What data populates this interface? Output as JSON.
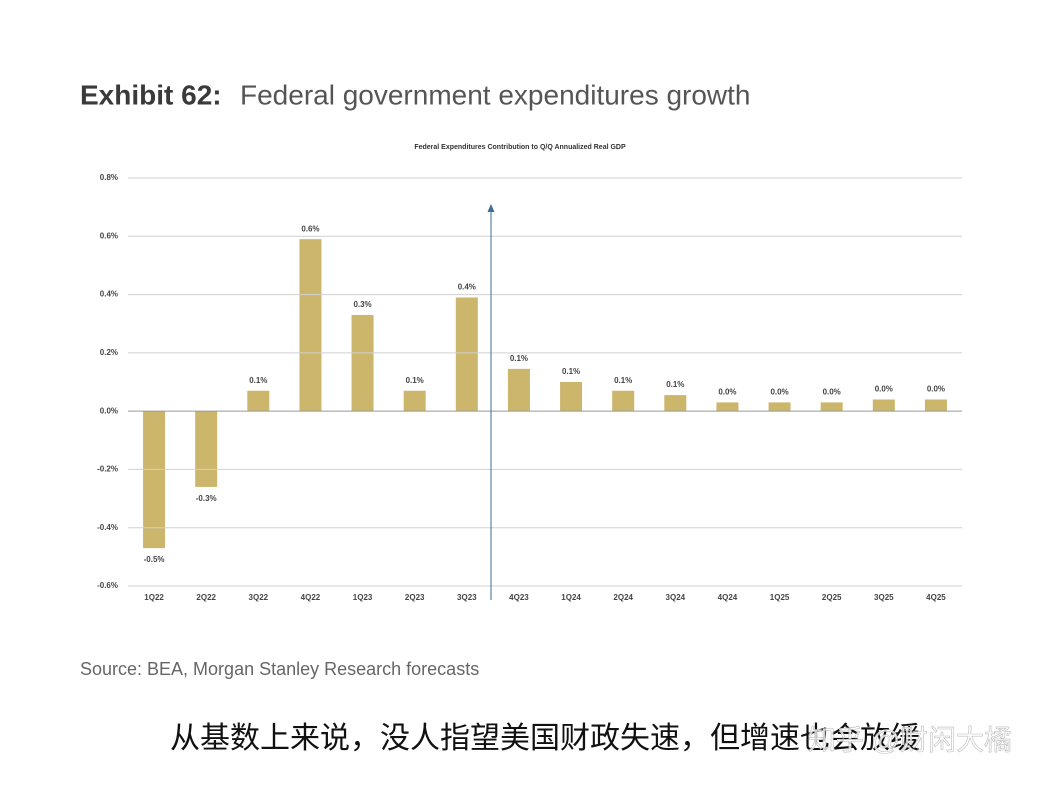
{
  "header": {
    "label": "Exhibit 62:",
    "title": "Federal government expenditures growth"
  },
  "chart_data": {
    "type": "bar",
    "title": "Federal Expenditures Contribution to Q/Q Annualized Real GDP",
    "categories": [
      "1Q22",
      "2Q22",
      "3Q22",
      "4Q22",
      "1Q23",
      "2Q23",
      "3Q23",
      "4Q23",
      "1Q24",
      "2Q24",
      "3Q24",
      "4Q24",
      "1Q25",
      "2Q25",
      "3Q25",
      "4Q25"
    ],
    "values": [
      -0.47,
      -0.26,
      0.07,
      0.59,
      0.33,
      0.07,
      0.39,
      0.145,
      0.1,
      0.07,
      0.055,
      0.03,
      0.03,
      0.03,
      0.04,
      0.04
    ],
    "value_labels": [
      "-0.5%",
      "-0.3%",
      "0.1%",
      "0.6%",
      "0.3%",
      "0.1%",
      "0.4%",
      "0.1%",
      "0.1%",
      "0.1%",
      "0.1%",
      "0.0%",
      "0.0%",
      "0.0%",
      "0.0%",
      "0.0%"
    ],
    "color": "#cbb66c",
    "ylim": [
      -0.6,
      0.8
    ],
    "yticks": [
      {
        "value": -0.6,
        "label": "-0.6%"
      },
      {
        "value": -0.4,
        "label": "-0.4%"
      },
      {
        "value": -0.2,
        "label": "-0.2%"
      },
      {
        "value": 0,
        "label": "0.0%"
      },
      {
        "value": 0.2,
        "label": "0.2%"
      },
      {
        "value": 0.4,
        "label": "0.4%"
      },
      {
        "value": 0.6,
        "label": "0.6%"
      },
      {
        "value": 0.8,
        "label": "0.8%"
      }
    ],
    "grid": true
  },
  "source": "Source: BEA, Morgan Stanley Research forecasts",
  "caption": "从基数上来说，没人指望美国财政失速，但增速也会放缓",
  "watermark": "知乎 @财闲大橘"
}
